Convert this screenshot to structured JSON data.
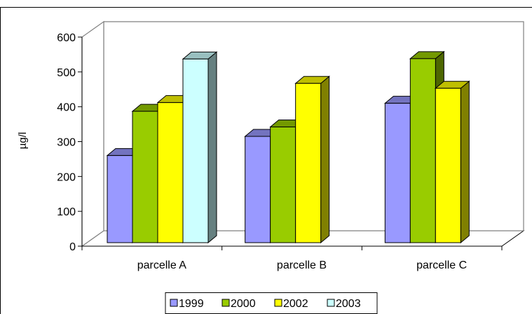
{
  "chart_data": {
    "type": "bar",
    "title": "",
    "xlabel": "",
    "ylabel": "µg/l",
    "ylim": [
      0,
      600
    ],
    "yticks": [
      0,
      100,
      200,
      300,
      400,
      500,
      600
    ],
    "grid": false,
    "legend_position": "bottom",
    "categories": [
      "parcelle A",
      "parcelle B",
      "parcelle C"
    ],
    "series": [
      {
        "name": "1999",
        "color": "#9999ff",
        "values": [
          250,
          305,
          400
        ]
      },
      {
        "name": "2000",
        "color": "#99cc00",
        "values": [
          377,
          332,
          528
        ]
      },
      {
        "name": "2002",
        "color": "#ffff00",
        "values": [
          402,
          457,
          443
        ]
      },
      {
        "name": "2003",
        "color": "#ccffff",
        "values": [
          527,
          null,
          null
        ]
      }
    ]
  }
}
